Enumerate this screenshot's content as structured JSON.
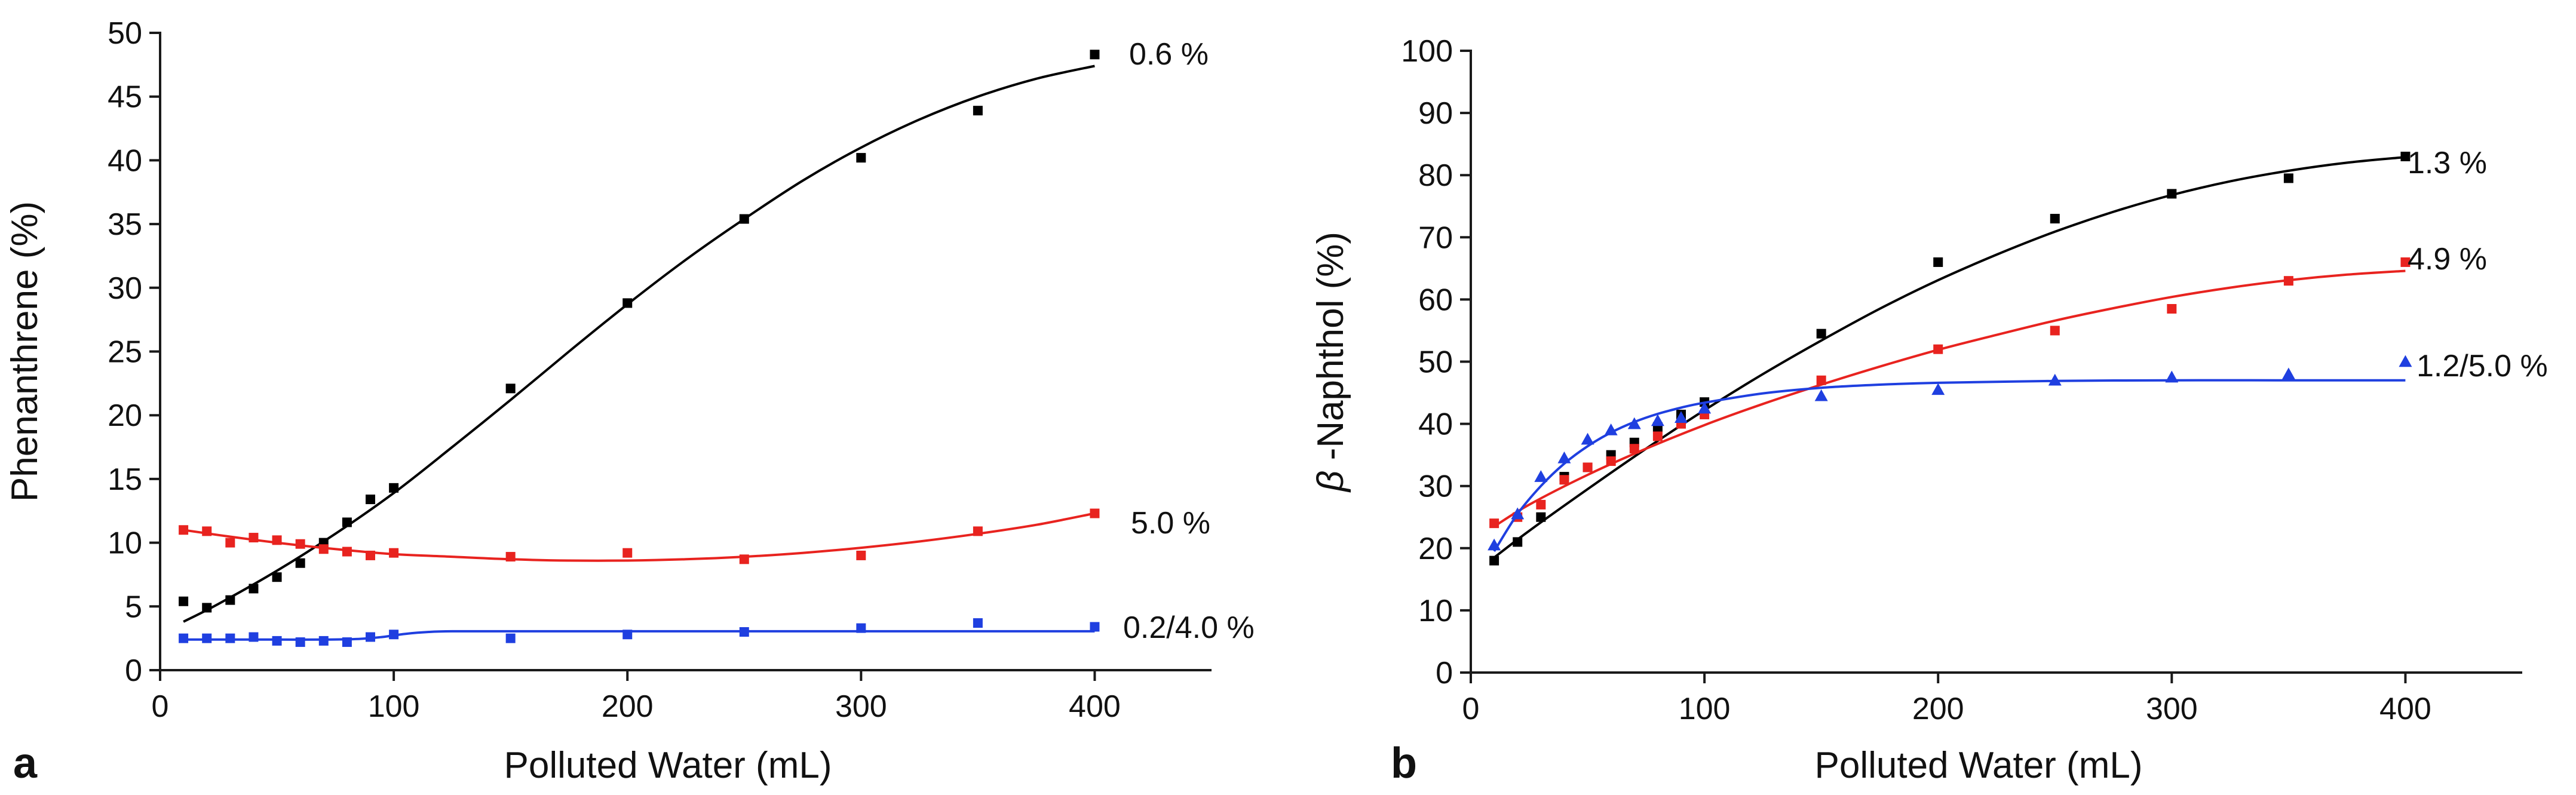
{
  "chart_data": [
    {
      "type": "scatter",
      "panel_label": "a",
      "xlabel": "Polluted Water (mL)",
      "ylabel": "Phenanthrene (%)",
      "xlim": [
        0,
        450
      ],
      "ylim": [
        0,
        50
      ],
      "xticks": [
        0,
        100,
        200,
        300,
        400
      ],
      "yticks": [
        0,
        5,
        10,
        15,
        20,
        25,
        30,
        35,
        40,
        45,
        50
      ],
      "series": [
        {
          "name": "0.6 %",
          "label": "0.6 %",
          "color": "#000000",
          "marker": "square",
          "x": [
            10,
            20,
            30,
            40,
            50,
            60,
            70,
            80,
            90,
            100,
            150,
            200,
            250,
            300,
            350,
            400
          ],
          "y": [
            5.4,
            4.9,
            5.5,
            6.4,
            7.3,
            8.4,
            10.0,
            11.6,
            13.4,
            14.3,
            22.1,
            28.8,
            35.4,
            40.2,
            43.9,
            48.3
          ],
          "fit_x": [
            10,
            25,
            50,
            75,
            100,
            125,
            150,
            175,
            200,
            225,
            250,
            275,
            300,
            325,
            350,
            375,
            400
          ],
          "fit_y": [
            3.8,
            5.2,
            7.8,
            10.7,
            13.9,
            17.5,
            21.2,
            25.0,
            28.7,
            32.2,
            35.4,
            38.4,
            41.0,
            43.2,
            45.0,
            46.4,
            47.4
          ]
        },
        {
          "name": "5.0 %",
          "label": "5.0 %",
          "color": "#e8231f",
          "marker": "square",
          "x": [
            10,
            20,
            30,
            40,
            50,
            60,
            70,
            80,
            90,
            100,
            150,
            200,
            250,
            300,
            350,
            400
          ],
          "y": [
            11.0,
            10.9,
            10.0,
            10.4,
            10.2,
            9.9,
            9.5,
            9.3,
            9.0,
            9.2,
            8.9,
            9.2,
            8.7,
            9.0,
            10.9,
            12.3
          ],
          "fit_x": [
            10,
            25,
            50,
            75,
            100,
            125,
            150,
            175,
            200,
            225,
            250,
            275,
            300,
            325,
            350,
            375,
            400
          ],
          "fit_y": [
            11.0,
            10.6,
            10.0,
            9.5,
            9.1,
            8.9,
            8.7,
            8.6,
            8.6,
            8.7,
            8.9,
            9.2,
            9.6,
            10.1,
            10.7,
            11.4,
            12.3
          ]
        },
        {
          "name": "0.2/4.0 %",
          "label": "0.2/4.0 %",
          "color": "#1f3fe0",
          "marker": "square",
          "x": [
            10,
            20,
            30,
            40,
            50,
            60,
            70,
            80,
            90,
            100,
            150,
            200,
            250,
            300,
            350,
            400
          ],
          "y": [
            2.5,
            2.5,
            2.5,
            2.6,
            2.3,
            2.2,
            2.3,
            2.2,
            2.6,
            2.8,
            2.5,
            2.8,
            3.0,
            3.3,
            3.7,
            3.4
          ],
          "fit_x": [
            10,
            30,
            50,
            70,
            85,
            95,
            105,
            115,
            125,
            150,
            200,
            250,
            300,
            350,
            400
          ],
          "fit_y": [
            2.4,
            2.4,
            2.4,
            2.4,
            2.45,
            2.6,
            2.85,
            3.0,
            3.05,
            3.05,
            3.05,
            3.05,
            3.05,
            3.05,
            3.05
          ]
        }
      ]
    },
    {
      "type": "scatter",
      "panel_label": "b",
      "xlabel": "Polluted Water (mL)",
      "ylabel_symbol": "β",
      "ylabel_text": "-Naphthol (%)",
      "xlim": [
        0,
        450
      ],
      "ylim": [
        0,
        100
      ],
      "xticks": [
        0,
        100,
        200,
        300,
        400
      ],
      "yticks": [
        0,
        10,
        20,
        30,
        40,
        50,
        60,
        70,
        80,
        90,
        100
      ],
      "series": [
        {
          "name": "1.3 %",
          "label": "1.3 %",
          "color": "#000000",
          "marker": "square",
          "x": [
            10,
            20,
            30,
            40,
            50,
            60,
            70,
            80,
            90,
            100,
            150,
            200,
            250,
            300,
            350,
            400
          ],
          "y": [
            18.0,
            21.0,
            25.0,
            31.5,
            33.0,
            35.0,
            37.0,
            39.5,
            41.5,
            43.5,
            54.5,
            66.0,
            73.0,
            77.0,
            79.5,
            83.0
          ],
          "fit_x": [
            10,
            25,
            50,
            75,
            100,
            125,
            150,
            175,
            200,
            225,
            250,
            275,
            300,
            325,
            350,
            375,
            400
          ],
          "fit_y": [
            18.5,
            22.8,
            29.5,
            36.0,
            42.2,
            48.0,
            53.4,
            58.5,
            63.1,
            67.2,
            70.9,
            74.1,
            76.8,
            79.0,
            80.7,
            82.0,
            82.9
          ]
        },
        {
          "name": "4.9 %",
          "label": "4.9 %",
          "color": "#e8231f",
          "marker": "square",
          "x": [
            10,
            20,
            30,
            40,
            50,
            60,
            70,
            80,
            90,
            100,
            150,
            200,
            250,
            300,
            350,
            400
          ],
          "y": [
            24.0,
            25.0,
            27.0,
            31.0,
            33.0,
            34.0,
            36.0,
            38.0,
            40.0,
            41.5,
            47.0,
            52.0,
            55.0,
            58.5,
            63.0,
            66.0
          ],
          "fit_x": [
            10,
            25,
            50,
            75,
            100,
            125,
            150,
            175,
            200,
            225,
            250,
            275,
            300,
            325,
            350,
            375,
            400
          ],
          "fit_y": [
            23.5,
            27.0,
            31.8,
            36.0,
            39.8,
            43.2,
            46.3,
            49.2,
            51.9,
            54.3,
            56.6,
            58.6,
            60.4,
            61.9,
            63.1,
            64.0,
            64.6
          ]
        },
        {
          "name": "1.2/5.0 %",
          "label": "1.2/5.0 %",
          "color": "#1f3fe0",
          "marker": "triangle",
          "x": [
            10,
            20,
            30,
            40,
            50,
            60,
            70,
            80,
            90,
            100,
            150,
            200,
            250,
            300,
            350,
            400
          ],
          "y": [
            20.5,
            25.5,
            31.5,
            34.5,
            37.5,
            39.0,
            40.0,
            40.5,
            41.0,
            42.5,
            44.5,
            45.5,
            47.0,
            47.5,
            48.0,
            50.0
          ],
          "fit_x": [
            10,
            20,
            30,
            40,
            50,
            60,
            70,
            80,
            90,
            100,
            125,
            150,
            175,
            200,
            250,
            300,
            350,
            400
          ],
          "fit_y": [
            19.5,
            25.5,
            30.0,
            33.6,
            36.4,
            38.6,
            40.3,
            41.6,
            42.6,
            43.4,
            44.9,
            45.8,
            46.3,
            46.6,
            46.9,
            47.0,
            47.0,
            47.0
          ]
        }
      ]
    }
  ]
}
